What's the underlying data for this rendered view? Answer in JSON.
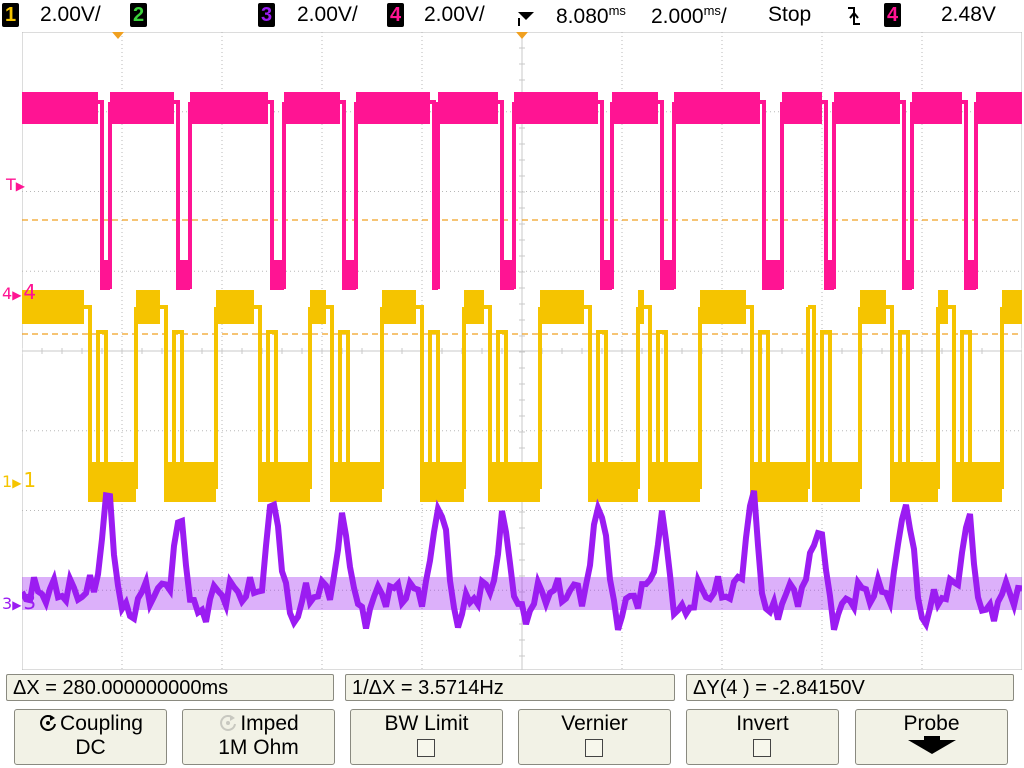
{
  "status_bar": {
    "ch1": {
      "number": "1",
      "scale": "2.00V/",
      "color": "#f5c400"
    },
    "ch2": {
      "number": "2",
      "color": "#3ad13a"
    },
    "ch3": {
      "number": "3",
      "scale": "2.00V/",
      "color": "#9b1cf2"
    },
    "ch4": {
      "number": "4",
      "scale": "2.00V/",
      "color": "#ff1493"
    },
    "time_delay": "8.080",
    "time_delay_unit": "ms",
    "time_scale": "2.000",
    "time_scale_unit": "ms",
    "time_scale_suffix": "/",
    "run_state": "Stop",
    "trigger_slope_icon": "falling-edge-icon",
    "trigger_source": "4",
    "trigger_level": "2.48V"
  },
  "screen_markers": {
    "trigger_level_marker": "T",
    "ch4_marker": "4",
    "ch4_label": "4",
    "ch1_marker": "1",
    "ch1_label": "1",
    "ch3_marker": "3",
    "ch3_label": "3"
  },
  "measurements": {
    "delta_x": "ΔX = 280.000000000ms",
    "inv_delta_x": "1/ΔX = 3.5714Hz",
    "delta_y": "ΔY(4 ) = -2.84150V"
  },
  "softkeys": [
    {
      "line1": "Coupling",
      "line2": "DC",
      "icon": "rotate-knob-icon"
    },
    {
      "line1": "Imped",
      "line2": "1M Ohm",
      "icon": "rotate-knob-icon-dimmed"
    },
    {
      "line1": "BW Limit",
      "checked": false
    },
    {
      "line1": "Vernier",
      "checked": false
    },
    {
      "line1": "Invert",
      "checked": false
    },
    {
      "line1": "Probe",
      "icon": "down-arrow-icon"
    }
  ],
  "colors": {
    "ch1": "#f5c400",
    "ch3": "#9b1cf2",
    "ch4": "#ff1493",
    "cursor": "#f0a020",
    "grid": "#b8b8b8"
  }
}
